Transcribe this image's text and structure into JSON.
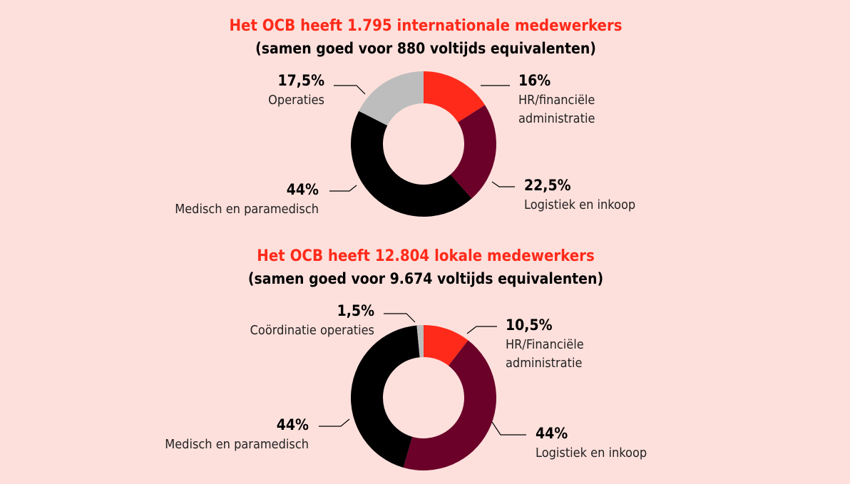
{
  "chart_data": [
    {
      "type": "pie",
      "title": "Het OCB heeft 1.795 internationale medewerkers",
      "subtitle": "(samen goed voor 880 voltijds equivalenten)",
      "categories": [
        "HR/financiële administratie",
        "Logistiek en inkoop",
        "Medisch en paramedisch",
        "Operaties"
      ],
      "values": [
        16,
        22.5,
        44,
        17.5
      ],
      "value_labels": [
        "16%",
        "22,5%",
        "44%",
        "17,5%"
      ],
      "colors": [
        "#ff2a1a",
        "#6b0028",
        "#000000",
        "#bdbdbd"
      ]
    },
    {
      "type": "pie",
      "title": "Het OCB heeft 12.804 lokale medewerkers",
      "subtitle": "(samen goed voor 9.674 voltijds equivalenten)",
      "categories": [
        "HR/Financiële administratie",
        "Logistiek en inkoop",
        "Medisch en paramedisch",
        "Coördinatie operaties"
      ],
      "values": [
        10.5,
        44,
        44,
        1.5
      ],
      "value_labels": [
        "10,5%",
        "44%",
        "44%",
        "1,5%"
      ],
      "colors": [
        "#ff2a1a",
        "#6b0028",
        "#000000",
        "#bdbdbd"
      ]
    }
  ]
}
